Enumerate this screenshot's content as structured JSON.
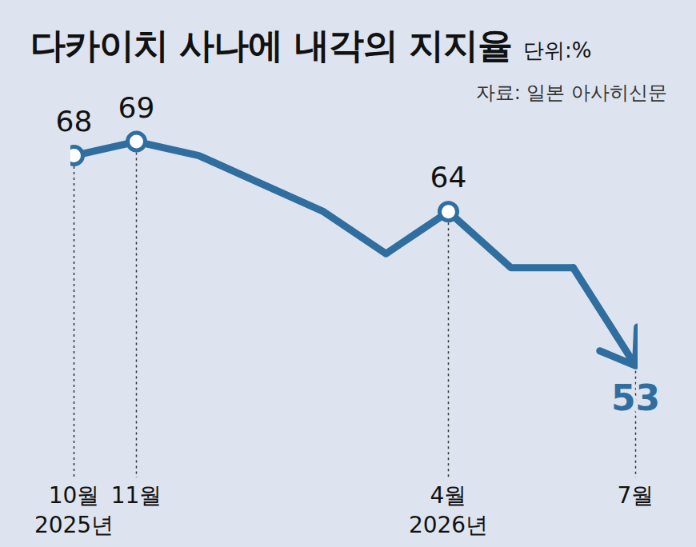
{
  "chart_data": {
    "type": "line",
    "title": "다카이치 사나에 내각의 지지율",
    "subtitle": "단위:%",
    "source": "자료: 일본 아사히신문",
    "categories": [
      "10월\n2025년",
      "11월",
      null,
      null,
      null,
      null,
      "4월\n2026년",
      null,
      null,
      "7월"
    ],
    "values": [
      68,
      69,
      68,
      66,
      64,
      61,
      64,
      60,
      60,
      53
    ],
    "value_labels": [
      "68",
      "69",
      null,
      null,
      null,
      null,
      "64",
      null,
      null,
      "53"
    ],
    "color": "#2f6e9f",
    "ylim": [
      45,
      72
    ],
    "grid": false,
    "tick_labels": "x",
    "data_labels": true,
    "marker": "circle"
  }
}
